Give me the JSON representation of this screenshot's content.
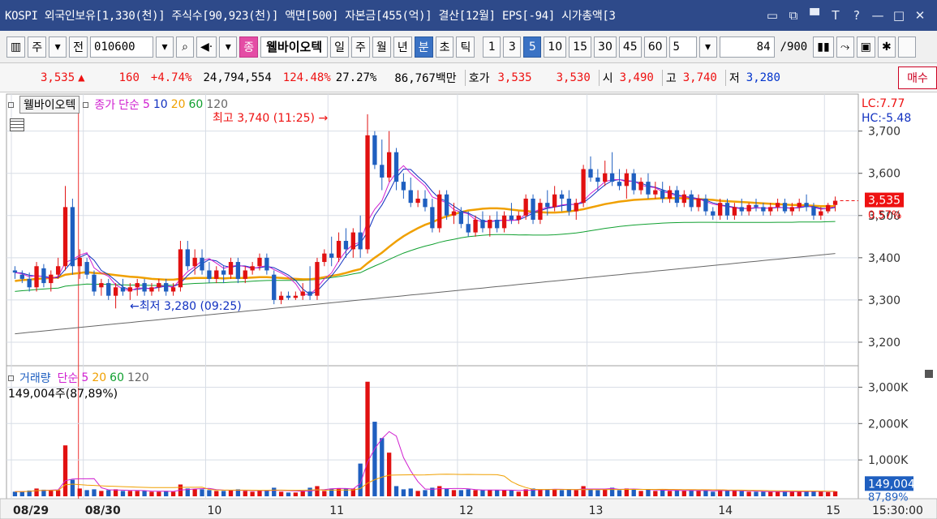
{
  "titlebar": {
    "info": "KOSPI 외국인보유[1,330(천)] 주식수[90,923(천)] 액면[500] 자본금[455(억)] 결산[12월] EPS[-94] 시가총액[3",
    "buttons": [
      "▭",
      "⧉",
      "▀",
      "T",
      "?",
      "—",
      "□",
      "✕"
    ]
  },
  "toolbar": {
    "period_label": "주",
    "prev_label": "전",
    "stock_code": "010600",
    "search_icon": "search-icon",
    "sound_icon": "speaker-icon",
    "jong_label": "종",
    "stock_name": "웰바이오텍",
    "tabs": [
      "일",
      "주",
      "월",
      "년",
      "분",
      "초",
      "틱"
    ],
    "active_tab": "분",
    "intervals": [
      "1",
      "3",
      "5",
      "10",
      "15",
      "30",
      "45",
      "60"
    ],
    "active_interval": "5",
    "interval_select": "5",
    "count_value": "84",
    "count_total": "/900"
  },
  "quote": {
    "price": "3,535",
    "arrow": "▲",
    "change": "160",
    "change_pct": "+4.74%",
    "volume": "24,794,554",
    "volume_ratio": "124.48%",
    "turnover": "27.27%",
    "amount": "86,767백만",
    "hoga_label": "호가",
    "hoga_ask": "3,535",
    "hoga_bid": "3,530",
    "open_label": "시",
    "open": "3,490",
    "high_label": "고",
    "high": "3,740",
    "low_label": "저",
    "low": "3,280",
    "buy_button": "매수"
  },
  "price_legend": {
    "name": "웰바이오텍",
    "close_label": "종가",
    "ma_label": "단순",
    "ma_periods": [
      "5",
      "10",
      "20",
      "60",
      "120"
    ],
    "ma_colors": [
      "#d020d0",
      "#1030c0",
      "#f0a000",
      "#10a030",
      "#666666"
    ]
  },
  "volume_legend": {
    "label": "거래량",
    "ma_label": "단순",
    "ma_periods": [
      "5",
      "20",
      "60",
      "120"
    ],
    "value_text": "149,004주(87,89%)"
  },
  "annotations": {
    "high_marker": "최고 3,740 (11:25)",
    "low_marker": "최저 3,280 (09:25)",
    "lc": "LC:7.77",
    "hc": "HC:-5.48",
    "price_tag": "3,535",
    "price_pct": "0.57%",
    "vol_tag": "149,004",
    "vol_pct": "87,89%"
  },
  "colors": {
    "up": "#e11111",
    "down": "#1f5fc0",
    "grid": "#d8dde6",
    "axis_bg": "#ffffff"
  },
  "chart_data": [
    {
      "type": "candlestick",
      "title": "웰바이오텍 5분봉",
      "x": [
        "08/29",
        "08/30",
        "10",
        "11",
        "12",
        "13",
        "14",
        "15"
      ],
      "y_ticks": [
        "3,200",
        "3,300",
        "3,400",
        "3,500",
        "3,600",
        "3,700"
      ],
      "ylim": [
        3150,
        3780
      ],
      "candles": [
        [
          3370,
          3380,
          3350,
          3365
        ],
        [
          3360,
          3370,
          3340,
          3350
        ],
        [
          3350,
          3365,
          3320,
          3330
        ],
        [
          3330,
          3390,
          3320,
          3380
        ],
        [
          3375,
          3385,
          3330,
          3340
        ],
        [
          3340,
          3370,
          3320,
          3360
        ],
        [
          3360,
          3400,
          3350,
          3380
        ],
        [
          3380,
          3570,
          3370,
          3520
        ],
        [
          3520,
          3540,
          3360,
          3380
        ],
        [
          3380,
          3420,
          3350,
          3400
        ],
        [
          3390,
          3400,
          3350,
          3360
        ],
        [
          3360,
          3370,
          3310,
          3320
        ],
        [
          3330,
          3350,
          3310,
          3340
        ],
        [
          3340,
          3350,
          3300,
          3310
        ],
        [
          3310,
          3340,
          3280,
          3330
        ],
        [
          3330,
          3350,
          3310,
          3320
        ],
        [
          3320,
          3340,
          3300,
          3330
        ],
        [
          3330,
          3350,
          3310,
          3340
        ],
        [
          3340,
          3350,
          3310,
          3320
        ],
        [
          3320,
          3340,
          3310,
          3330
        ],
        [
          3330,
          3350,
          3320,
          3340
        ],
        [
          3340,
          3350,
          3310,
          3320
        ],
        [
          3320,
          3340,
          3310,
          3330
        ],
        [
          3330,
          3440,
          3320,
          3420
        ],
        [
          3420,
          3440,
          3370,
          3380
        ],
        [
          3380,
          3420,
          3360,
          3400
        ],
        [
          3400,
          3420,
          3360,
          3370
        ],
        [
          3370,
          3390,
          3340,
          3350
        ],
        [
          3350,
          3380,
          3340,
          3370
        ],
        [
          3370,
          3380,
          3340,
          3360
        ],
        [
          3360,
          3400,
          3350,
          3390
        ],
        [
          3390,
          3400,
          3340,
          3350
        ],
        [
          3350,
          3380,
          3340,
          3370
        ],
        [
          3370,
          3390,
          3360,
          3380
        ],
        [
          3380,
          3410,
          3370,
          3400
        ],
        [
          3400,
          3410,
          3360,
          3370
        ],
        [
          3360,
          3370,
          3290,
          3300
        ],
        [
          3300,
          3320,
          3290,
          3310
        ],
        [
          3310,
          3320,
          3300,
          3305
        ],
        [
          3305,
          3320,
          3300,
          3310
        ],
        [
          3310,
          3340,
          3300,
          3320
        ],
        [
          3320,
          3380,
          3300,
          3310
        ],
        [
          3310,
          3400,
          3300,
          3390
        ],
        [
          3390,
          3420,
          3380,
          3410
        ],
        [
          3410,
          3450,
          3380,
          3400
        ],
        [
          3400,
          3460,
          3390,
          3440
        ],
        [
          3440,
          3470,
          3400,
          3420
        ],
        [
          3420,
          3470,
          3400,
          3460
        ],
        [
          3460,
          3500,
          3400,
          3420
        ],
        [
          3420,
          3740,
          3410,
          3690
        ],
        [
          3690,
          3700,
          3610,
          3620
        ],
        [
          3620,
          3680,
          3560,
          3590
        ],
        [
          3590,
          3700,
          3580,
          3650
        ],
        [
          3650,
          3660,
          3560,
          3580
        ],
        [
          3580,
          3600,
          3540,
          3560
        ],
        [
          3560,
          3590,
          3520,
          3530
        ],
        [
          3530,
          3560,
          3520,
          3540
        ],
        [
          3540,
          3560,
          3510,
          3520
        ],
        [
          3520,
          3540,
          3460,
          3470
        ],
        [
          3470,
          3560,
          3460,
          3550
        ],
        [
          3550,
          3560,
          3490,
          3500
        ],
        [
          3500,
          3530,
          3480,
          3510
        ],
        [
          3510,
          3520,
          3470,
          3480
        ],
        [
          3480,
          3510,
          3450,
          3460
        ],
        [
          3460,
          3500,
          3450,
          3490
        ],
        [
          3490,
          3510,
          3460,
          3470
        ],
        [
          3470,
          3500,
          3450,
          3490
        ],
        [
          3490,
          3510,
          3460,
          3470
        ],
        [
          3470,
          3510,
          3460,
          3500
        ],
        [
          3500,
          3530,
          3480,
          3490
        ],
        [
          3490,
          3510,
          3480,
          3500
        ],
        [
          3500,
          3550,
          3490,
          3540
        ],
        [
          3540,
          3550,
          3480,
          3490
        ],
        [
          3490,
          3540,
          3480,
          3530
        ],
        [
          3530,
          3560,
          3500,
          3520
        ],
        [
          3520,
          3570,
          3510,
          3550
        ],
        [
          3550,
          3560,
          3510,
          3540
        ],
        [
          3540,
          3560,
          3500,
          3510
        ],
        [
          3510,
          3540,
          3490,
          3530
        ],
        [
          3530,
          3620,
          3520,
          3610
        ],
        [
          3610,
          3640,
          3580,
          3590
        ],
        [
          3590,
          3610,
          3560,
          3580
        ],
        [
          3580,
          3630,
          3570,
          3600
        ],
        [
          3600,
          3650,
          3570,
          3580
        ],
        [
          3580,
          3610,
          3560,
          3570
        ],
        [
          3570,
          3610,
          3540,
          3600
        ],
        [
          3600,
          3610,
          3550,
          3560
        ],
        [
          3560,
          3590,
          3550,
          3580
        ],
        [
          3580,
          3600,
          3540,
          3550
        ],
        [
          3550,
          3580,
          3540,
          3560
        ],
        [
          3560,
          3580,
          3530,
          3540
        ],
        [
          3540,
          3570,
          3530,
          3560
        ],
        [
          3560,
          3570,
          3520,
          3530
        ],
        [
          3530,
          3560,
          3520,
          3550
        ],
        [
          3550,
          3560,
          3510,
          3520
        ],
        [
          3520,
          3550,
          3510,
          3540
        ],
        [
          3540,
          3550,
          3500,
          3510
        ],
        [
          3510,
          3520,
          3490,
          3500
        ],
        [
          3500,
          3540,
          3490,
          3530
        ],
        [
          3530,
          3540,
          3490,
          3500
        ],
        [
          3500,
          3530,
          3490,
          3520
        ],
        [
          3520,
          3540,
          3500,
          3510
        ],
        [
          3510,
          3530,
          3500,
          3525
        ],
        [
          3525,
          3540,
          3510,
          3520
        ],
        [
          3520,
          3530,
          3500,
          3510
        ],
        [
          3510,
          3530,
          3500,
          3520
        ],
        [
          3520,
          3540,
          3510,
          3530
        ],
        [
          3530,
          3540,
          3505,
          3510
        ],
        [
          3510,
          3530,
          3500,
          3520
        ],
        [
          3520,
          3540,
          3510,
          3530
        ],
        [
          3530,
          3550,
          3510,
          3520
        ],
        [
          3520,
          3530,
          3490,
          3500
        ],
        [
          3500,
          3520,
          3490,
          3510
        ],
        [
          3510,
          3530,
          3505,
          3525
        ],
        [
          3525,
          3545,
          3510,
          3535
        ]
      ],
      "ma": {
        "5": [
          3365,
          3362,
          3355,
          3358,
          3355,
          3350,
          3356,
          3389,
          3396,
          3406,
          3412,
          3376,
          3364,
          3356,
          3336,
          3326,
          3322,
          3328,
          3328,
          3326,
          3333,
          3333,
          3330,
          3349,
          3367,
          3379,
          3393,
          3398,
          3387,
          3375,
          3380,
          3382,
          3379,
          3374,
          3378,
          3381,
          3372,
          3364,
          3354,
          3339,
          3313,
          3313,
          3329,
          3350,
          3364,
          3393,
          3416,
          3432,
          3436,
          3486,
          3515,
          3535,
          3578,
          3602,
          3618,
          3600,
          3585,
          3570,
          3544,
          3537,
          3530,
          3514,
          3508,
          3504,
          3490,
          3485,
          3486,
          3489,
          3489,
          3488,
          3491,
          3503,
          3508,
          3515,
          3519,
          3521,
          3525,
          3527,
          3526,
          3535,
          3552,
          3565,
          3580,
          3585,
          3585,
          3580,
          3582,
          3572,
          3568,
          3566,
          3556,
          3553,
          3545,
          3546,
          3540,
          3540,
          3533,
          3527,
          3524,
          3521,
          3518,
          3516,
          3517,
          3519,
          3517,
          3518,
          3520,
          3518,
          3517,
          3520,
          3523,
          3519,
          3515,
          3517,
          3521
        ],
        "20": [
          3345,
          3347,
          3348,
          3350,
          3351,
          3352,
          3353,
          3360,
          3362,
          3364,
          3366,
          3364,
          3363,
          3361,
          3359,
          3357,
          3355,
          3354,
          3352,
          3350,
          3349,
          3348,
          3348,
          3350,
          3351,
          3352,
          3352,
          3352,
          3352,
          3351,
          3352,
          3352,
          3352,
          3353,
          3354,
          3354,
          3353,
          3352,
          3351,
          3350,
          3349,
          3349,
          3351,
          3354,
          3357,
          3360,
          3364,
          3369,
          3373,
          3387,
          3400,
          3412,
          3426,
          3439,
          3451,
          3461,
          3470,
          3478,
          3484,
          3492,
          3498,
          3503,
          3508,
          3512,
          3514,
          3516,
          3517,
          3517,
          3516,
          3514,
          3512,
          3511,
          3509,
          3508,
          3507,
          3507,
          3508,
          3510,
          3512,
          3515,
          3519,
          3523,
          3527,
          3530,
          3533,
          3535,
          3537,
          3538,
          3539,
          3540,
          3541,
          3541,
          3541,
          3541,
          3540,
          3539,
          3538,
          3537,
          3535,
          3534,
          3533,
          3532,
          3531,
          3530,
          3529,
          3528,
          3527,
          3526,
          3525,
          3525,
          3524,
          3523,
          3522,
          3522,
          3522
        ]
      }
    },
    {
      "type": "bar",
      "title": "거래량",
      "y_ticks": [
        "1,000K",
        "2,000K",
        "3,000K"
      ],
      "ylim": [
        0,
        3300000
      ]
    }
  ]
}
